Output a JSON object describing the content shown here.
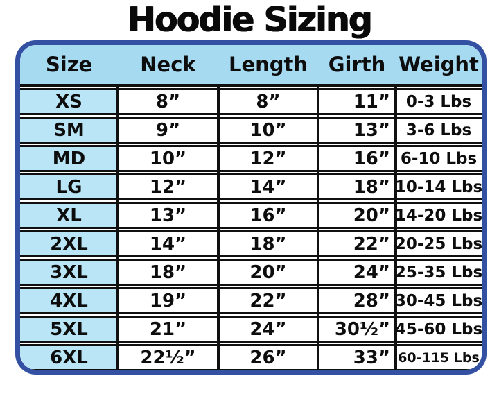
{
  "title": "Hoodie Sizing",
  "chart_data": {
    "type": "table",
    "title": "Hoodie Sizing",
    "columns": [
      "Size",
      "Neck",
      "Length",
      "Girth",
      "Weight"
    ],
    "rows": [
      [
        "XS",
        "8”",
        "8”",
        "11”",
        "0-3 Lbs"
      ],
      [
        "SM",
        "9”",
        "10”",
        "13”",
        "3-6 Lbs"
      ],
      [
        "MD",
        "10”",
        "12”",
        "16”",
        "6-10 Lbs"
      ],
      [
        "LG",
        "12”",
        "14”",
        "18”",
        "10-14 Lbs"
      ],
      [
        "XL",
        "13”",
        "16”",
        "20”",
        "14-20 Lbs"
      ],
      [
        "2XL",
        "14”",
        "18”",
        "22”",
        "20-25 Lbs"
      ],
      [
        "3XL",
        "18”",
        "20”",
        "24”",
        "25-35 Lbs"
      ],
      [
        "4XL",
        "19”",
        "22”",
        "28”",
        "30-45 Lbs"
      ],
      [
        "5XL",
        "21”",
        "24”",
        "30½”",
        "45-60 Lbs"
      ],
      [
        "6XL",
        "22½”",
        "26”",
        "33”",
        "60-115 Lbs"
      ]
    ],
    "layout": {
      "header_background": "light-blue",
      "size_column_background": "light-blue",
      "grid": "on"
    }
  },
  "colors": {
    "outer_border_blue": "#3350a2",
    "header_blue": "#a6daf0",
    "size_cell_blue": "#b9e5f6",
    "grid_line_black": "#101010",
    "text_black": "#0d0d0d",
    "background_white": "#ffffff"
  }
}
